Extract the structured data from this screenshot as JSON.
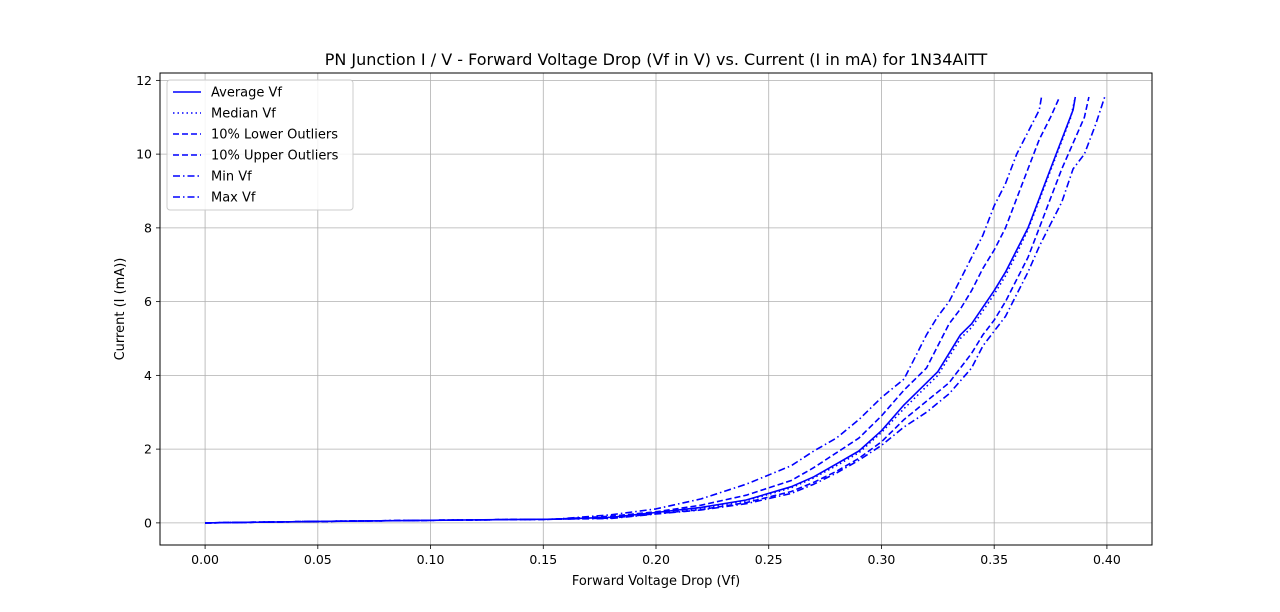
{
  "chart_data": {
    "type": "line",
    "title": "PN Junction I / V - Forward Voltage Drop (Vf in V) vs. Current (I in mA) for 1N34AITT",
    "xlabel": "Forward Voltage Drop (Vf)",
    "ylabel": "Current (I (mA))",
    "xlim": [
      -0.02,
      0.42
    ],
    "ylim": [
      -0.6,
      12.2
    ],
    "xticks": [
      0.0,
      0.05,
      0.1,
      0.15,
      0.2,
      0.25,
      0.3,
      0.35,
      0.4
    ],
    "xtick_labels": [
      "0.00",
      "0.05",
      "0.10",
      "0.15",
      "0.20",
      "0.25",
      "0.30",
      "0.35",
      "0.40"
    ],
    "yticks": [
      0,
      2,
      4,
      6,
      8,
      10,
      12
    ],
    "ytick_labels": [
      "0",
      "2",
      "4",
      "6",
      "8",
      "10",
      "12"
    ],
    "grid": true,
    "legend": "upper-left",
    "color": "#0000ff",
    "series": [
      {
        "name": "Average Vf",
        "style": "solid",
        "points": [
          [
            0.0,
            0.0
          ],
          [
            0.05,
            0.04
          ],
          [
            0.1,
            0.07
          ],
          [
            0.155,
            0.1
          ],
          [
            0.18,
            0.15
          ],
          [
            0.2,
            0.28
          ],
          [
            0.22,
            0.42
          ],
          [
            0.24,
            0.62
          ],
          [
            0.26,
            0.98
          ],
          [
            0.27,
            1.25
          ],
          [
            0.28,
            1.6
          ],
          [
            0.29,
            1.95
          ],
          [
            0.3,
            2.5
          ],
          [
            0.31,
            3.2
          ],
          [
            0.32,
            3.8
          ],
          [
            0.325,
            4.1
          ],
          [
            0.33,
            4.6
          ],
          [
            0.335,
            5.1
          ],
          [
            0.34,
            5.4
          ],
          [
            0.345,
            5.85
          ],
          [
            0.35,
            6.3
          ],
          [
            0.355,
            6.8
          ],
          [
            0.36,
            7.4
          ],
          [
            0.365,
            8.0
          ],
          [
            0.37,
            8.8
          ],
          [
            0.375,
            9.6
          ],
          [
            0.38,
            10.4
          ],
          [
            0.385,
            11.2
          ],
          [
            0.386,
            11.55
          ]
        ]
      },
      {
        "name": "Median Vf",
        "style": "dotted",
        "points": [
          [
            0.0,
            0.0
          ],
          [
            0.05,
            0.04
          ],
          [
            0.1,
            0.07
          ],
          [
            0.155,
            0.1
          ],
          [
            0.18,
            0.15
          ],
          [
            0.2,
            0.27
          ],
          [
            0.22,
            0.4
          ],
          [
            0.24,
            0.6
          ],
          [
            0.26,
            0.95
          ],
          [
            0.27,
            1.22
          ],
          [
            0.28,
            1.55
          ],
          [
            0.29,
            1.9
          ],
          [
            0.3,
            2.45
          ],
          [
            0.31,
            3.1
          ],
          [
            0.32,
            3.7
          ],
          [
            0.325,
            4.0
          ],
          [
            0.33,
            4.5
          ],
          [
            0.335,
            5.0
          ],
          [
            0.34,
            5.3
          ],
          [
            0.345,
            5.75
          ],
          [
            0.35,
            6.2
          ],
          [
            0.355,
            6.7
          ],
          [
            0.36,
            7.3
          ],
          [
            0.365,
            7.95
          ],
          [
            0.37,
            8.75
          ],
          [
            0.375,
            9.55
          ],
          [
            0.38,
            10.35
          ],
          [
            0.384,
            11.0
          ],
          [
            0.386,
            11.55
          ]
        ]
      },
      {
        "name": "10% Lower Outliers",
        "style": "dashed",
        "points": [
          [
            0.0,
            0.0
          ],
          [
            0.05,
            0.04
          ],
          [
            0.1,
            0.07
          ],
          [
            0.155,
            0.1
          ],
          [
            0.18,
            0.13
          ],
          [
            0.2,
            0.25
          ],
          [
            0.22,
            0.36
          ],
          [
            0.24,
            0.55
          ],
          [
            0.26,
            0.85
          ],
          [
            0.27,
            1.1
          ],
          [
            0.28,
            1.4
          ],
          [
            0.29,
            1.75
          ],
          [
            0.3,
            2.2
          ],
          [
            0.31,
            2.8
          ],
          [
            0.32,
            3.3
          ],
          [
            0.33,
            3.8
          ],
          [
            0.34,
            4.6
          ],
          [
            0.345,
            5.1
          ],
          [
            0.35,
            5.5
          ],
          [
            0.355,
            6.0
          ],
          [
            0.36,
            6.6
          ],
          [
            0.365,
            7.2
          ],
          [
            0.37,
            8.0
          ],
          [
            0.375,
            8.8
          ],
          [
            0.38,
            9.6
          ],
          [
            0.385,
            10.3
          ],
          [
            0.39,
            11.0
          ],
          [
            0.392,
            11.55
          ]
        ]
      },
      {
        "name": "10% Upper Outliers",
        "style": "dashed",
        "points": [
          [
            0.0,
            0.0
          ],
          [
            0.05,
            0.04
          ],
          [
            0.1,
            0.07
          ],
          [
            0.155,
            0.1
          ],
          [
            0.18,
            0.18
          ],
          [
            0.2,
            0.3
          ],
          [
            0.22,
            0.48
          ],
          [
            0.24,
            0.75
          ],
          [
            0.26,
            1.15
          ],
          [
            0.27,
            1.5
          ],
          [
            0.28,
            1.9
          ],
          [
            0.29,
            2.3
          ],
          [
            0.3,
            2.9
          ],
          [
            0.31,
            3.6
          ],
          [
            0.32,
            4.2
          ],
          [
            0.325,
            4.8
          ],
          [
            0.33,
            5.4
          ],
          [
            0.335,
            5.8
          ],
          [
            0.34,
            6.3
          ],
          [
            0.345,
            6.9
          ],
          [
            0.35,
            7.4
          ],
          [
            0.355,
            8.0
          ],
          [
            0.36,
            8.8
          ],
          [
            0.365,
            9.6
          ],
          [
            0.37,
            10.4
          ],
          [
            0.375,
            11.0
          ],
          [
            0.379,
            11.55
          ]
        ]
      },
      {
        "name": "Min Vf",
        "style": "dashdot",
        "points": [
          [
            0.0,
            0.0
          ],
          [
            0.05,
            0.04
          ],
          [
            0.1,
            0.07
          ],
          [
            0.155,
            0.1
          ],
          [
            0.18,
            0.12
          ],
          [
            0.2,
            0.24
          ],
          [
            0.22,
            0.35
          ],
          [
            0.24,
            0.52
          ],
          [
            0.26,
            0.8
          ],
          [
            0.27,
            1.05
          ],
          [
            0.28,
            1.35
          ],
          [
            0.29,
            1.7
          ],
          [
            0.3,
            2.1
          ],
          [
            0.31,
            2.6
          ],
          [
            0.32,
            3.0
          ],
          [
            0.33,
            3.5
          ],
          [
            0.34,
            4.2
          ],
          [
            0.345,
            4.8
          ],
          [
            0.35,
            5.2
          ],
          [
            0.355,
            5.6
          ],
          [
            0.36,
            6.2
          ],
          [
            0.365,
            6.8
          ],
          [
            0.37,
            7.5
          ],
          [
            0.375,
            8.1
          ],
          [
            0.38,
            8.7
          ],
          [
            0.385,
            9.6
          ],
          [
            0.39,
            10.0
          ],
          [
            0.395,
            10.8
          ],
          [
            0.399,
            11.55
          ]
        ]
      },
      {
        "name": "Max Vf",
        "style": "dashdot",
        "points": [
          [
            0.0,
            0.0
          ],
          [
            0.05,
            0.04
          ],
          [
            0.1,
            0.07
          ],
          [
            0.155,
            0.1
          ],
          [
            0.18,
            0.22
          ],
          [
            0.2,
            0.38
          ],
          [
            0.22,
            0.65
          ],
          [
            0.24,
            1.05
          ],
          [
            0.26,
            1.55
          ],
          [
            0.27,
            1.95
          ],
          [
            0.28,
            2.3
          ],
          [
            0.29,
            2.8
          ],
          [
            0.3,
            3.4
          ],
          [
            0.31,
            3.9
          ],
          [
            0.315,
            4.5
          ],
          [
            0.32,
            5.1
          ],
          [
            0.325,
            5.6
          ],
          [
            0.33,
            6.0
          ],
          [
            0.335,
            6.6
          ],
          [
            0.34,
            7.2
          ],
          [
            0.345,
            7.8
          ],
          [
            0.35,
            8.6
          ],
          [
            0.355,
            9.2
          ],
          [
            0.36,
            10.0
          ],
          [
            0.365,
            10.6
          ],
          [
            0.37,
            11.2
          ],
          [
            0.371,
            11.55
          ]
        ]
      }
    ]
  }
}
